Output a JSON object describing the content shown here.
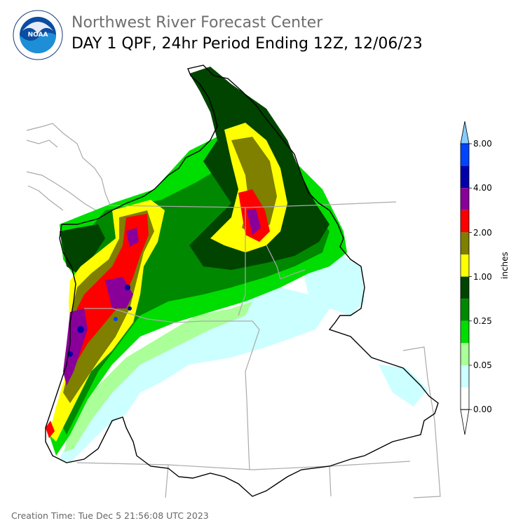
{
  "header": {
    "agency": "Northwest River Forecast Center",
    "product": "DAY 1 QPF, 24hr Period Ending 12Z, 12/06/23"
  },
  "logo": {
    "icon": "noaa-logo-icon",
    "text": "NOAA"
  },
  "legend": {
    "units": "inches",
    "tick_labels": [
      "0.00",
      "0.05",
      "0.25",
      "1.00",
      "2.00",
      "4.00",
      "8.00"
    ],
    "colors": [
      "#ffffff",
      "#ccffff",
      "#aaff99",
      "#00dd00",
      "#008800",
      "#004400",
      "#ffff00",
      "#7f7f00",
      "#ff0000",
      "#880099",
      "#0000aa",
      "#0044ff",
      "#88ccff"
    ]
  },
  "footer": {
    "creation": "Creation Time: Tue Dec 5 21:56:08 UTC 2023"
  }
}
